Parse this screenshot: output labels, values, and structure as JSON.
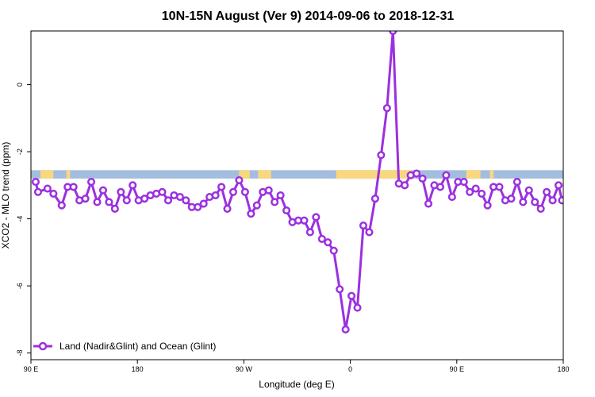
{
  "chart_data": {
    "type": "line",
    "title": "10N-15N August (Ver 9)   2014-09-06 to 2018-12-31",
    "xlabel": "Longitude (deg E)",
    "ylabel": "XCO2 - MLO trend (ppm)",
    "xlim": [
      90,
      540
    ],
    "ylim": [
      -8.2,
      1.6
    ],
    "x_ticks": [
      {
        "value": 90,
        "label": "90 E"
      },
      {
        "value": 180,
        "label": "180"
      },
      {
        "value": 270,
        "label": "90 W"
      },
      {
        "value": 360,
        "label": "0"
      },
      {
        "value": 450,
        "label": "90 E"
      },
      {
        "value": 540,
        "label": "180"
      }
    ],
    "y_ticks": [
      {
        "value": -8,
        "label": "-8"
      },
      {
        "value": -6,
        "label": "-6"
      },
      {
        "value": -4,
        "label": "-4"
      },
      {
        "value": -2,
        "label": "-2"
      },
      {
        "value": 0,
        "label": "0"
      }
    ],
    "grid": false,
    "legend_position": "bottom-left",
    "series": [
      {
        "name": "Land (Nadir&Glint) and Ocean (Glint)",
        "color": "#9b30e0",
        "x": [
          94,
          96,
          104,
          109,
          116,
          121,
          126,
          131,
          136,
          141,
          146,
          151,
          156,
          161,
          166,
          171,
          176,
          181,
          186,
          191,
          196,
          201,
          206,
          211,
          216,
          221,
          226,
          231,
          236,
          241,
          246,
          251,
          256,
          261,
          266,
          271,
          276,
          281,
          286,
          291,
          296,
          301,
          306,
          311,
          316,
          321,
          326,
          331,
          336,
          341,
          346,
          351,
          356,
          361,
          366,
          371,
          376,
          381,
          386,
          391,
          396,
          401,
          406,
          411,
          416,
          421,
          426,
          431,
          436,
          441,
          446,
          451,
          456,
          461,
          466,
          471,
          476,
          481,
          486,
          491,
          496,
          501,
          506,
          511,
          516,
          521,
          526,
          531,
          536,
          539
        ],
        "y": [
          -2.9,
          -3.2,
          -3.1,
          -3.25,
          -3.6,
          -3.05,
          -3.05,
          -3.45,
          -3.4,
          -2.9,
          -3.5,
          -3.15,
          -3.5,
          -3.7,
          -3.2,
          -3.45,
          -3.0,
          -3.45,
          -3.4,
          -3.3,
          -3.25,
          -3.2,
          -3.45,
          -3.3,
          -3.35,
          -3.45,
          -3.65,
          -3.65,
          -3.55,
          -3.35,
          -3.3,
          -3.05,
          -3.7,
          -3.2,
          -2.85,
          -3.2,
          -3.85,
          -3.6,
          -3.2,
          -3.15,
          -3.5,
          -3.3,
          -3.75,
          -4.1,
          -4.05,
          -4.05,
          -4.4,
          -3.95,
          -4.6,
          -4.7,
          -4.95,
          -6.1,
          -7.3,
          -6.3,
          -6.65,
          -4.2,
          -4.4,
          -3.4,
          -2.1,
          -0.7,
          1.6,
          -2.95,
          -3.0,
          -2.7,
          -2.65,
          -2.8,
          -3.55,
          -3.0,
          -3.05,
          -2.7,
          -3.35,
          -2.9,
          -2.9,
          -3.2,
          -3.1,
          -3.25,
          -3.6,
          -3.05,
          -3.05,
          -3.45,
          -3.4,
          -2.9,
          -3.5,
          -3.15,
          -3.5,
          -3.7,
          -3.2,
          -3.45,
          -3.0,
          -3.45
        ]
      }
    ],
    "band": {
      "y_top": -2.55,
      "y_bottom": -2.8,
      "ocean_color": "#a4bddf",
      "land_color": "#f9d77e",
      "land_segments": [
        [
          98,
          109
        ],
        [
          120,
          123
        ],
        [
          266,
          275
        ],
        [
          282,
          293
        ],
        [
          348,
          412
        ],
        [
          458,
          470
        ],
        [
          478,
          481
        ]
      ]
    }
  }
}
